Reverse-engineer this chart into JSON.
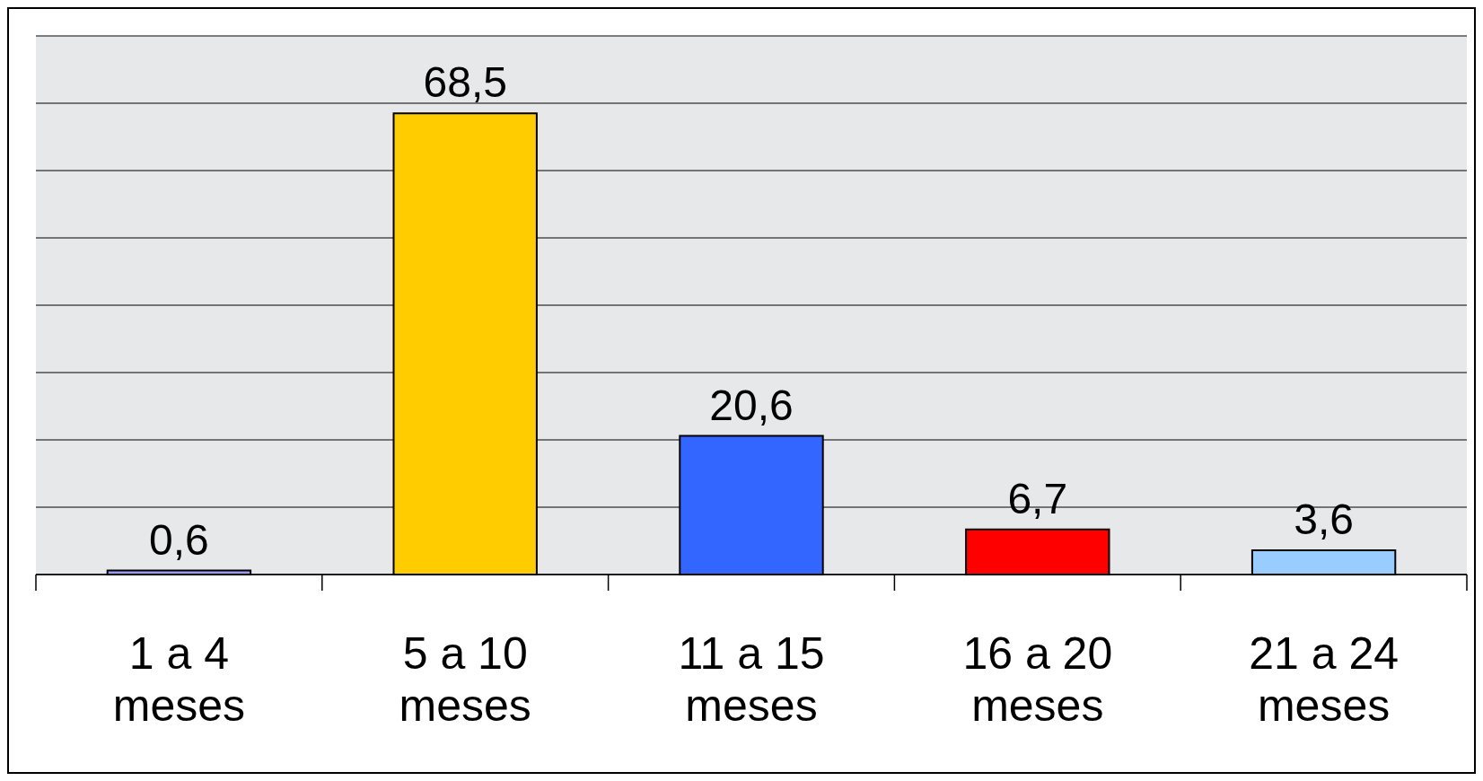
{
  "chart_data": {
    "type": "bar",
    "categories": [
      "1 a 4 meses",
      "5 a 10 meses",
      "11 a 15 meses",
      "16 a 20 meses",
      "21 a 24 meses"
    ],
    "values": [
      0.6,
      68.5,
      20.6,
      6.7,
      3.6
    ],
    "colors": [
      "#9999ff",
      "#ffcc00",
      "#3366ff",
      "#ff0000",
      "#99ccff"
    ],
    "value_labels": [
      "0,6",
      "68,5",
      "20,6",
      "6,7",
      "3,6"
    ],
    "ylim": [
      0,
      80
    ],
    "yticks": [
      {
        "value": 0,
        "label": null
      },
      {
        "value": 10,
        "label": null
      },
      {
        "value": 20,
        "label": null
      },
      {
        "value": 30,
        "label": null
      },
      {
        "value": 40,
        "label": null
      },
      {
        "value": 50,
        "label": null
      },
      {
        "value": 60,
        "label": null
      },
      {
        "value": 70,
        "label": null
      },
      {
        "value": 80,
        "label": null
      }
    ],
    "grid": "y",
    "tick_labels": "x"
  }
}
